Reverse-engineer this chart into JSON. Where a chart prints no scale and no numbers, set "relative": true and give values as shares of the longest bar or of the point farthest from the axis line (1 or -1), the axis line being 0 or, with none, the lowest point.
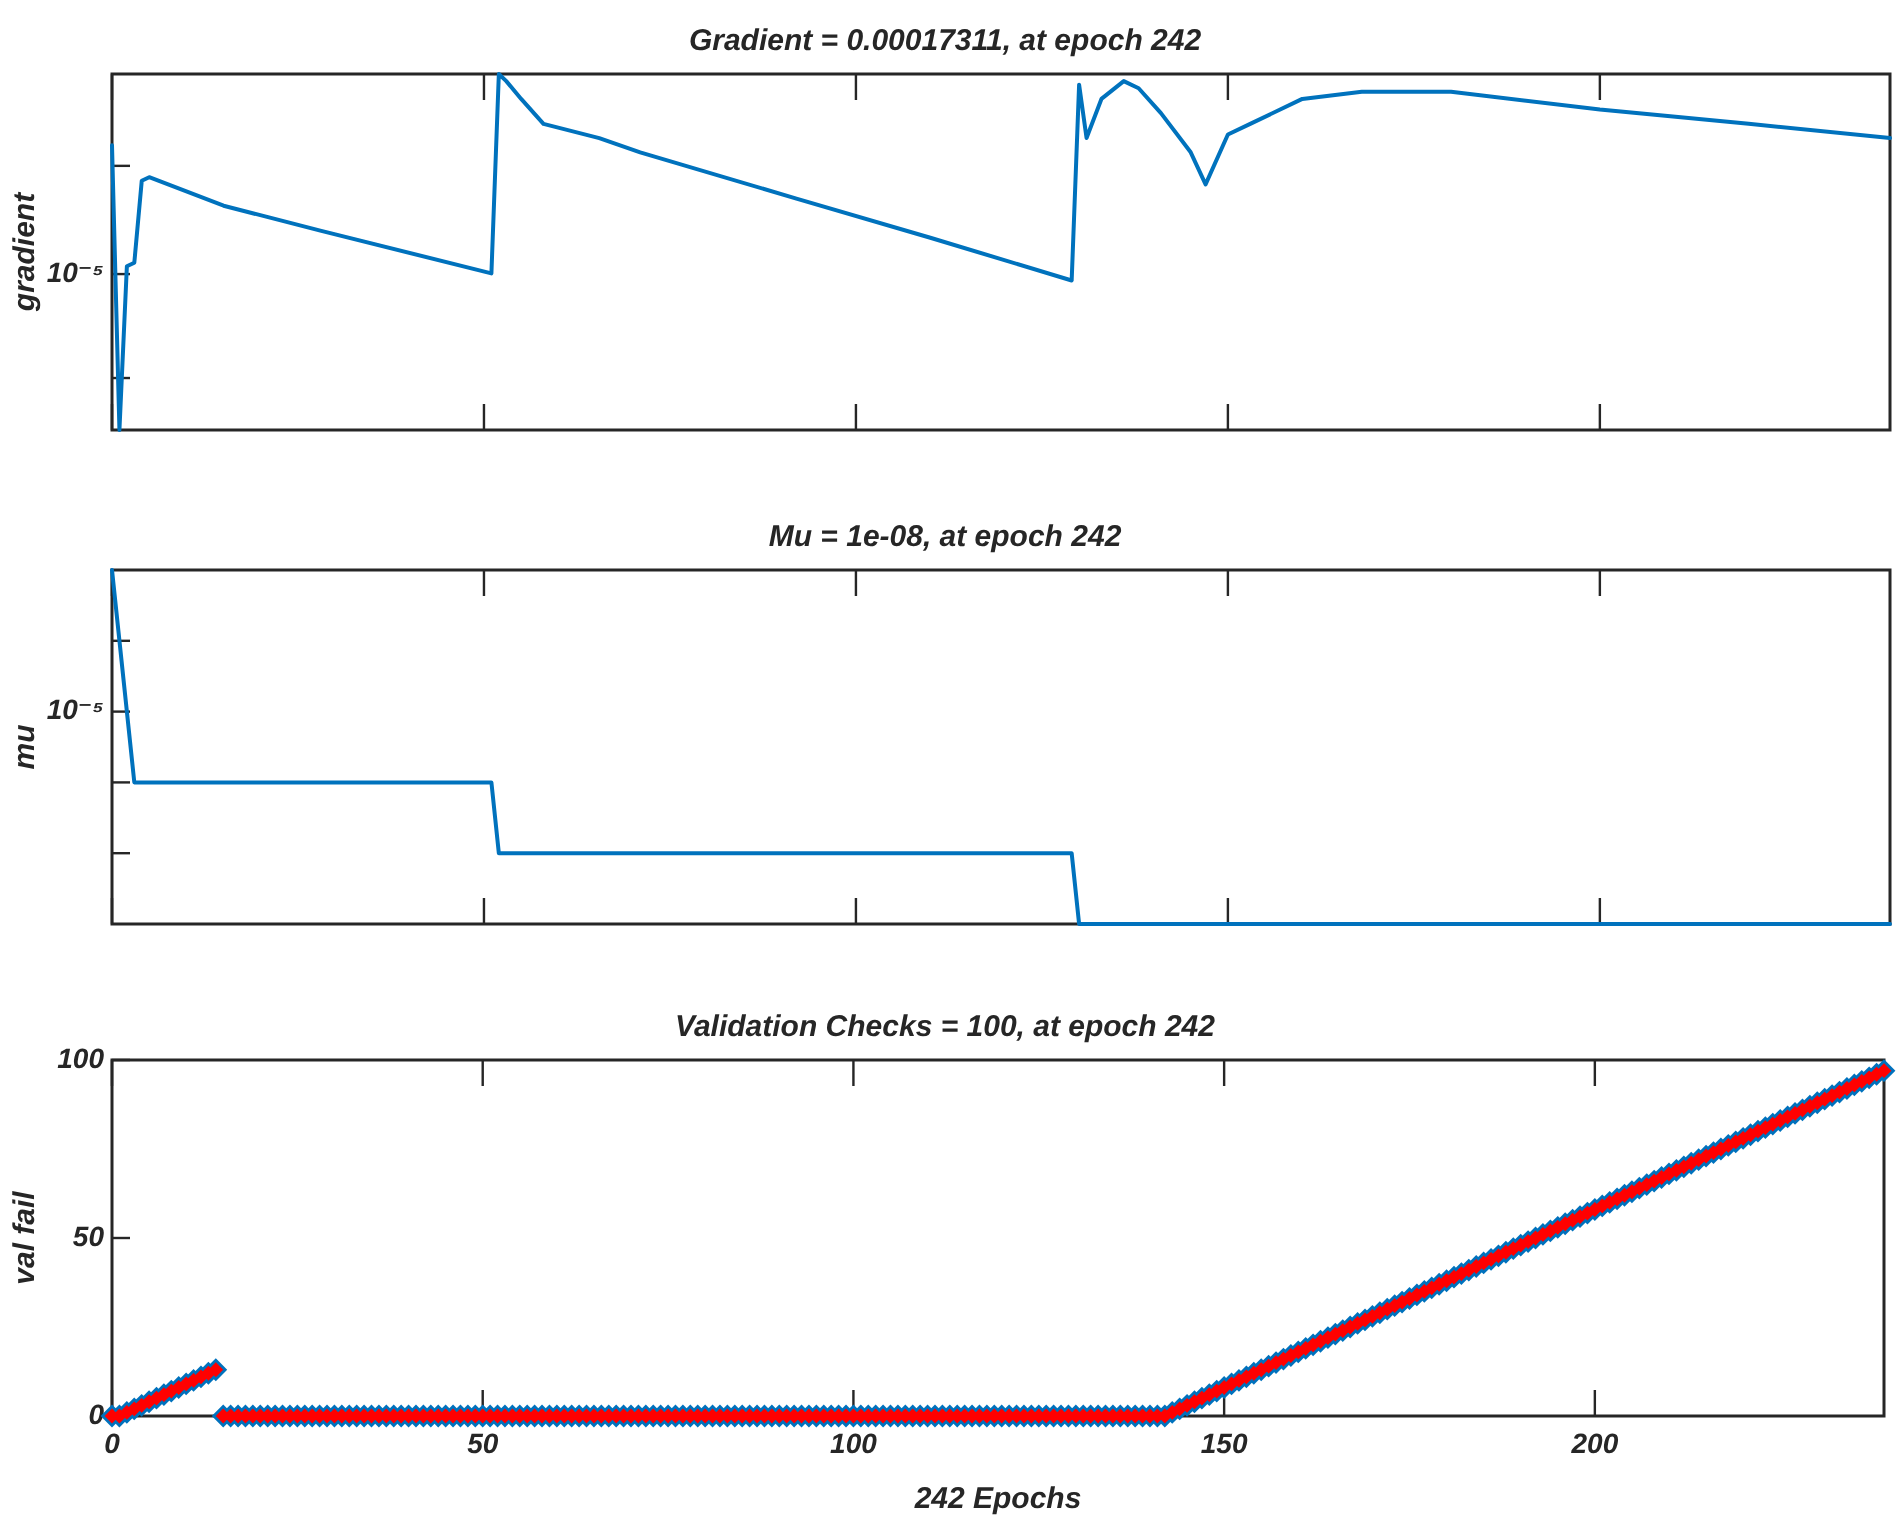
{
  "chart_data": [
    {
      "type": "line",
      "title": "Gradient = 0.00017311, at epoch 242",
      "ylabel": "gradient",
      "relative": true,
      "tick_labels": false,
      "legend": false,
      "marker": "none",
      "annotations": [
        "10⁻⁵"
      ],
      "xlim": [
        0,
        239
      ],
      "xticks": [
        0,
        50,
        100,
        150,
        200
      ],
      "x": [
        0,
        1,
        2,
        3,
        4,
        5,
        15,
        28,
        51,
        52,
        53,
        55,
        58,
        65.5,
        71,
        92,
        110,
        129,
        130,
        131,
        133,
        136,
        138,
        141,
        145,
        147,
        150,
        153,
        160,
        168,
        180,
        200,
        220,
        239
      ],
      "series": [
        {
          "color": "#0072bd",
          "values": [
            0.8,
            0,
            0.46,
            0.47,
            0.7,
            0.71,
            0.63,
            0.56,
            0.44,
            1,
            0.98,
            0.93,
            0.86,
            0.82,
            0.78,
            0.65,
            0.54,
            0.42,
            0.97,
            0.82,
            0.93,
            0.98,
            0.96,
            0.89,
            0.78,
            0.69,
            0.83,
            0.86,
            0.93,
            0.95,
            0.95,
            0.9,
            0.86,
            0.82
          ]
        }
      ]
    },
    {
      "type": "line",
      "title": "Mu = 1e-08, at epoch 242",
      "ylabel": "mu",
      "relative": true,
      "tick_labels": false,
      "legend": false,
      "marker": "none",
      "annotations": [
        "10⁻⁵"
      ],
      "xlim": [
        0,
        239
      ],
      "xticks": [
        0,
        50,
        100,
        150,
        200
      ],
      "x": [
        0,
        3,
        51,
        52,
        129,
        130,
        239
      ],
      "series": [
        {
          "color": "#0072bd",
          "values": [
            1,
            0.4,
            0.4,
            0.2,
            0.2,
            0,
            0
          ]
        }
      ]
    },
    {
      "type": "scatter",
      "title": "Validation Checks = 100, at epoch 242",
      "ylabel": "val fail",
      "xlabel": "242 Epochs",
      "legend": false,
      "marker": "diamond",
      "xlim": [
        0,
        239
      ],
      "xticks": [
        0,
        50,
        100,
        150,
        200
      ],
      "ylim": [
        0,
        100
      ],
      "yticks": [
        0,
        50,
        100
      ],
      "x": [
        0,
        1,
        2,
        3,
        4,
        5,
        6,
        7,
        8,
        9,
        10,
        11,
        12,
        13,
        14,
        15,
        16,
        17,
        18,
        19,
        20,
        21,
        22,
        23,
        24,
        25,
        26,
        27,
        28,
        29,
        30,
        31,
        32,
        33,
        34,
        35,
        36,
        37,
        38,
        39,
        40,
        41,
        42,
        43,
        44,
        45,
        46,
        47,
        48,
        49,
        50,
        51,
        52,
        53,
        54,
        55,
        56,
        57,
        58,
        59,
        60,
        61,
        62,
        63,
        64,
        65,
        66,
        67,
        68,
        69,
        70,
        71,
        72,
        73,
        74,
        75,
        76,
        77,
        78,
        79,
        80,
        81,
        82,
        83,
        84,
        85,
        86,
        87,
        88,
        89,
        90,
        91,
        92,
        93,
        94,
        95,
        96,
        97,
        98,
        99,
        100,
        101,
        102,
        103,
        104,
        105,
        106,
        107,
        108,
        109,
        110,
        111,
        112,
        113,
        114,
        115,
        116,
        117,
        118,
        119,
        120,
        121,
        122,
        123,
        124,
        125,
        126,
        127,
        128,
        129,
        130,
        131,
        132,
        133,
        134,
        135,
        136,
        137,
        138,
        139,
        140,
        141,
        142,
        143,
        144,
        145,
        146,
        147,
        148,
        149,
        150,
        151,
        152,
        153,
        154,
        155,
        156,
        157,
        158,
        159,
        160,
        161,
        162,
        163,
        164,
        165,
        166,
        167,
        168,
        169,
        170,
        171,
        172,
        173,
        174,
        175,
        176,
        177,
        178,
        179,
        180,
        181,
        182,
        183,
        184,
        185,
        186,
        187,
        188,
        189,
        190,
        191,
        192,
        193,
        194,
        195,
        196,
        197,
        198,
        199,
        200,
        201,
        202,
        203,
        204,
        205,
        206,
        207,
        208,
        209,
        210,
        211,
        212,
        213,
        214,
        215,
        216,
        217,
        218,
        219,
        220,
        221,
        222,
        223,
        224,
        225,
        226,
        227,
        228,
        229,
        230,
        231,
        232,
        233,
        234,
        235,
        236,
        237,
        238,
        239
      ],
      "series": [
        {
          "color": "#0072bd",
          "values": [
            0,
            0,
            1,
            2,
            3,
            4,
            5,
            6,
            7,
            8,
            9,
            10,
            11,
            12,
            13,
            0,
            0,
            0,
            0,
            0,
            0,
            0,
            0,
            0,
            0,
            0,
            0,
            0,
            0,
            0,
            0,
            0,
            0,
            0,
            0,
            0,
            0,
            0,
            0,
            0,
            0,
            0,
            0,
            0,
            0,
            0,
            0,
            0,
            0,
            0,
            0,
            0,
            0,
            0,
            0,
            0,
            0,
            0,
            0,
            0,
            0,
            0,
            0,
            0,
            0,
            0,
            0,
            0,
            0,
            0,
            0,
            0,
            0,
            0,
            0,
            0,
            0,
            0,
            0,
            0,
            0,
            0,
            0,
            0,
            0,
            0,
            0,
            0,
            0,
            0,
            0,
            0,
            0,
            0,
            0,
            0,
            0,
            0,
            0,
            0,
            0,
            0,
            0,
            0,
            0,
            0,
            0,
            0,
            0,
            0,
            0,
            0,
            0,
            0,
            0,
            0,
            0,
            0,
            0,
            0,
            0,
            0,
            0,
            0,
            0,
            0,
            0,
            0,
            0,
            0,
            0,
            0,
            0,
            0,
            0,
            0,
            0,
            0,
            0,
            0,
            0,
            0,
            0,
            1,
            2,
            3,
            4,
            5,
            6,
            7,
            8,
            9,
            10,
            11,
            12,
            13,
            14,
            15,
            16,
            17,
            18,
            19,
            20,
            21,
            22,
            23,
            24,
            25,
            26,
            27,
            28,
            29,
            30,
            31,
            32,
            33,
            34,
            35,
            36,
            37,
            38,
            39,
            40,
            41,
            42,
            43,
            44,
            45,
            46,
            47,
            48,
            49,
            50,
            51,
            52,
            53,
            54,
            55,
            56,
            57,
            58,
            59,
            60,
            61,
            62,
            63,
            64,
            65,
            66,
            67,
            68,
            69,
            70,
            71,
            72,
            73,
            74,
            75,
            76,
            77,
            78,
            79,
            80,
            81,
            82,
            83,
            84,
            85,
            86,
            87,
            88,
            89,
            90,
            91,
            92,
            93,
            94,
            95,
            96,
            97
          ]
        },
        {
          "color": "#ff0000",
          "values": [
            0,
            0,
            1,
            2,
            3,
            4,
            5,
            6,
            7,
            8,
            9,
            10,
            11,
            12,
            13,
            0,
            0,
            0,
            0,
            0,
            0,
            0,
            0,
            0,
            0,
            0,
            0,
            0,
            0,
            0,
            0,
            0,
            0,
            0,
            0,
            0,
            0,
            0,
            0,
            0,
            0,
            0,
            0,
            0,
            0,
            0,
            0,
            0,
            0,
            0,
            0,
            0,
            0,
            0,
            0,
            0,
            0,
            0,
            0,
            0,
            0,
            0,
            0,
            0,
            0,
            0,
            0,
            0,
            0,
            0,
            0,
            0,
            0,
            0,
            0,
            0,
            0,
            0,
            0,
            0,
            0,
            0,
            0,
            0,
            0,
            0,
            0,
            0,
            0,
            0,
            0,
            0,
            0,
            0,
            0,
            0,
            0,
            0,
            0,
            0,
            0,
            0,
            0,
            0,
            0,
            0,
            0,
            0,
            0,
            0,
            0,
            0,
            0,
            0,
            0,
            0,
            0,
            0,
            0,
            0,
            0,
            0,
            0,
            0,
            0,
            0,
            0,
            0,
            0,
            0,
            0,
            0,
            0,
            0,
            0,
            0,
            0,
            0,
            0,
            0,
            0,
            0,
            0,
            1,
            2,
            3,
            4,
            5,
            6,
            7,
            8,
            9,
            10,
            11,
            12,
            13,
            14,
            15,
            16,
            17,
            18,
            19,
            20,
            21,
            22,
            23,
            24,
            25,
            26,
            27,
            28,
            29,
            30,
            31,
            32,
            33,
            34,
            35,
            36,
            37,
            38,
            39,
            40,
            41,
            42,
            43,
            44,
            45,
            46,
            47,
            48,
            49,
            50,
            51,
            52,
            53,
            54,
            55,
            56,
            57,
            58,
            59,
            60,
            61,
            62,
            63,
            64,
            65,
            66,
            67,
            68,
            69,
            70,
            71,
            72,
            73,
            74,
            75,
            76,
            77,
            78,
            79,
            80,
            81,
            82,
            83,
            84,
            85,
            86,
            87,
            88,
            89,
            90,
            91,
            92,
            93,
            94,
            95,
            96,
            97
          ]
        }
      ]
    }
  ]
}
